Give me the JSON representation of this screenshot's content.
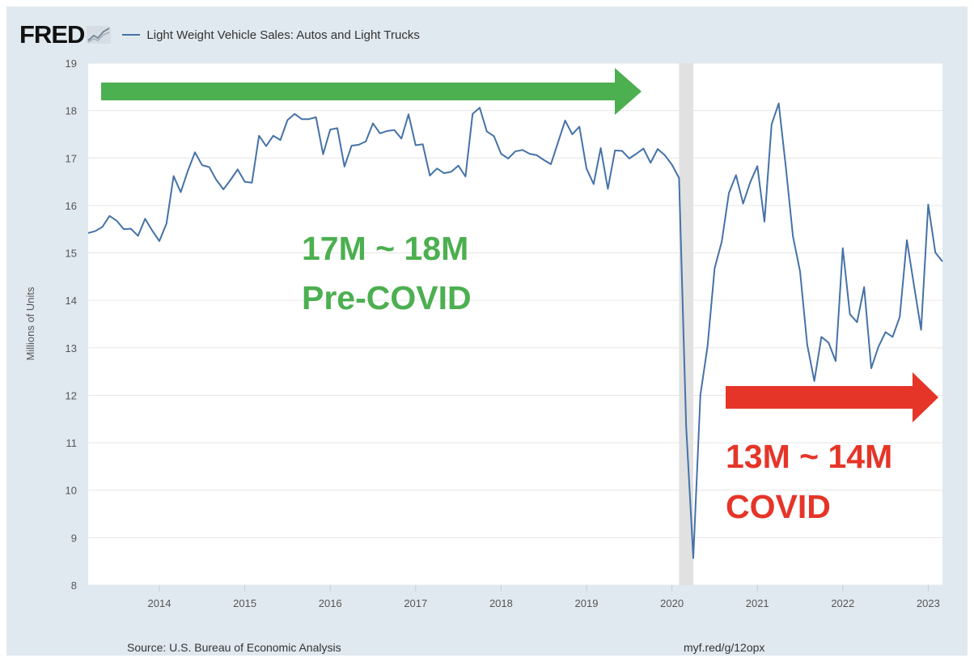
{
  "header": {
    "logo_text": "FRED",
    "logo_icon": "fred-graph-icon",
    "legend_label": "Light Weight Vehicle Sales: Autos and Light Trucks"
  },
  "colors": {
    "background": "#e1e9f0",
    "plot_background": "#ffffff",
    "series_line": "#4572a7",
    "recession_shade": "#e1e1e1",
    "green_annotation": "#4caf50",
    "red_annotation": "#e53528"
  },
  "footer": {
    "source": "Source: U.S. Bureau of Economic Analysis",
    "link": "myf.red/g/12opx"
  },
  "chart_data": {
    "type": "line",
    "title": "",
    "xlabel": "",
    "ylabel": "Millions of Units",
    "xlim": [
      "2013-03",
      "2023-03"
    ],
    "ylim": [
      8,
      19
    ],
    "yticks": [
      8,
      9,
      10,
      11,
      12,
      13,
      14,
      15,
      16,
      17,
      18,
      19
    ],
    "xticks": [
      "2014",
      "2015",
      "2016",
      "2017",
      "2018",
      "2019",
      "2020",
      "2021",
      "2022",
      "2023"
    ],
    "grid": "horizontal",
    "recession_shading": {
      "start": "2020-02",
      "end": "2020-04"
    },
    "series": [
      {
        "name": "Light Weight Vehicle Sales: Autos and Light Trucks",
        "x": [
          "2013-03",
          "2013-04",
          "2013-05",
          "2013-06",
          "2013-07",
          "2013-08",
          "2013-09",
          "2013-10",
          "2013-11",
          "2013-12",
          "2014-01",
          "2014-02",
          "2014-03",
          "2014-04",
          "2014-05",
          "2014-06",
          "2014-07",
          "2014-08",
          "2014-09",
          "2014-10",
          "2014-11",
          "2014-12",
          "2015-01",
          "2015-02",
          "2015-03",
          "2015-04",
          "2015-05",
          "2015-06",
          "2015-07",
          "2015-08",
          "2015-09",
          "2015-10",
          "2015-11",
          "2015-12",
          "2016-01",
          "2016-02",
          "2016-03",
          "2016-04",
          "2016-05",
          "2016-06",
          "2016-07",
          "2016-08",
          "2016-09",
          "2016-10",
          "2016-11",
          "2016-12",
          "2017-01",
          "2017-02",
          "2017-03",
          "2017-04",
          "2017-05",
          "2017-06",
          "2017-07",
          "2017-08",
          "2017-09",
          "2017-10",
          "2017-11",
          "2017-12",
          "2018-01",
          "2018-02",
          "2018-03",
          "2018-04",
          "2018-05",
          "2018-06",
          "2018-07",
          "2018-08",
          "2018-09",
          "2018-10",
          "2018-11",
          "2018-12",
          "2019-01",
          "2019-02",
          "2019-03",
          "2019-04",
          "2019-05",
          "2019-06",
          "2019-07",
          "2019-08",
          "2019-09",
          "2019-10",
          "2019-11",
          "2019-12",
          "2020-01",
          "2020-02",
          "2020-03",
          "2020-04",
          "2020-05",
          "2020-06",
          "2020-07",
          "2020-08",
          "2020-09",
          "2020-10",
          "2020-11",
          "2020-12",
          "2021-01",
          "2021-02",
          "2021-03",
          "2021-04",
          "2021-05",
          "2021-06",
          "2021-07",
          "2021-08",
          "2021-09",
          "2021-10",
          "2021-11",
          "2021-12",
          "2022-01",
          "2022-02",
          "2022-03",
          "2022-04",
          "2022-05",
          "2022-06",
          "2022-07",
          "2022-08",
          "2022-09",
          "2022-10",
          "2022-11",
          "2022-12",
          "2023-01",
          "2023-02",
          "2023-03"
        ],
        "y": [
          15.42,
          15.46,
          15.55,
          15.78,
          15.68,
          15.5,
          15.51,
          15.36,
          15.72,
          15.47,
          15.25,
          15.62,
          16.62,
          16.28,
          16.73,
          17.12,
          16.85,
          16.81,
          16.54,
          16.34,
          16.54,
          16.76,
          16.5,
          16.48,
          17.47,
          17.25,
          17.47,
          17.38,
          17.8,
          17.93,
          17.82,
          17.82,
          17.86,
          17.08,
          17.6,
          17.63,
          16.82,
          17.26,
          17.28,
          17.35,
          17.73,
          17.52,
          17.57,
          17.59,
          17.41,
          17.92,
          17.27,
          17.29,
          16.63,
          16.78,
          16.68,
          16.71,
          16.84,
          16.61,
          17.93,
          18.06,
          17.56,
          17.46,
          17.09,
          16.99,
          17.14,
          17.17,
          17.09,
          17.06,
          16.96,
          16.87,
          17.33,
          17.79,
          17.5,
          17.66,
          16.78,
          16.45,
          17.21,
          16.35,
          17.16,
          17.15,
          16.99,
          17.09,
          17.2,
          16.9,
          17.19,
          17.06,
          16.86,
          16.58,
          11.34,
          8.57,
          12.01,
          13.03,
          14.68,
          15.24,
          16.26,
          16.64,
          16.04,
          16.49,
          16.83,
          15.66,
          17.71,
          18.15,
          16.81,
          15.35,
          14.61,
          13.07,
          12.3,
          13.23,
          13.11,
          12.72,
          15.1,
          13.71,
          13.54,
          14.28,
          12.57,
          13.02,
          13.33,
          13.23,
          13.65,
          15.27,
          14.32,
          13.38,
          16.02,
          15.01,
          14.82
        ]
      }
    ],
    "annotations": [
      {
        "lines": [
          "17M ~ 18M",
          "Pre-COVID"
        ],
        "color": "green",
        "arrow": "right"
      },
      {
        "lines": [
          "13M ~ 14M",
          "COVID"
        ],
        "color": "red",
        "arrow": "right"
      }
    ]
  }
}
